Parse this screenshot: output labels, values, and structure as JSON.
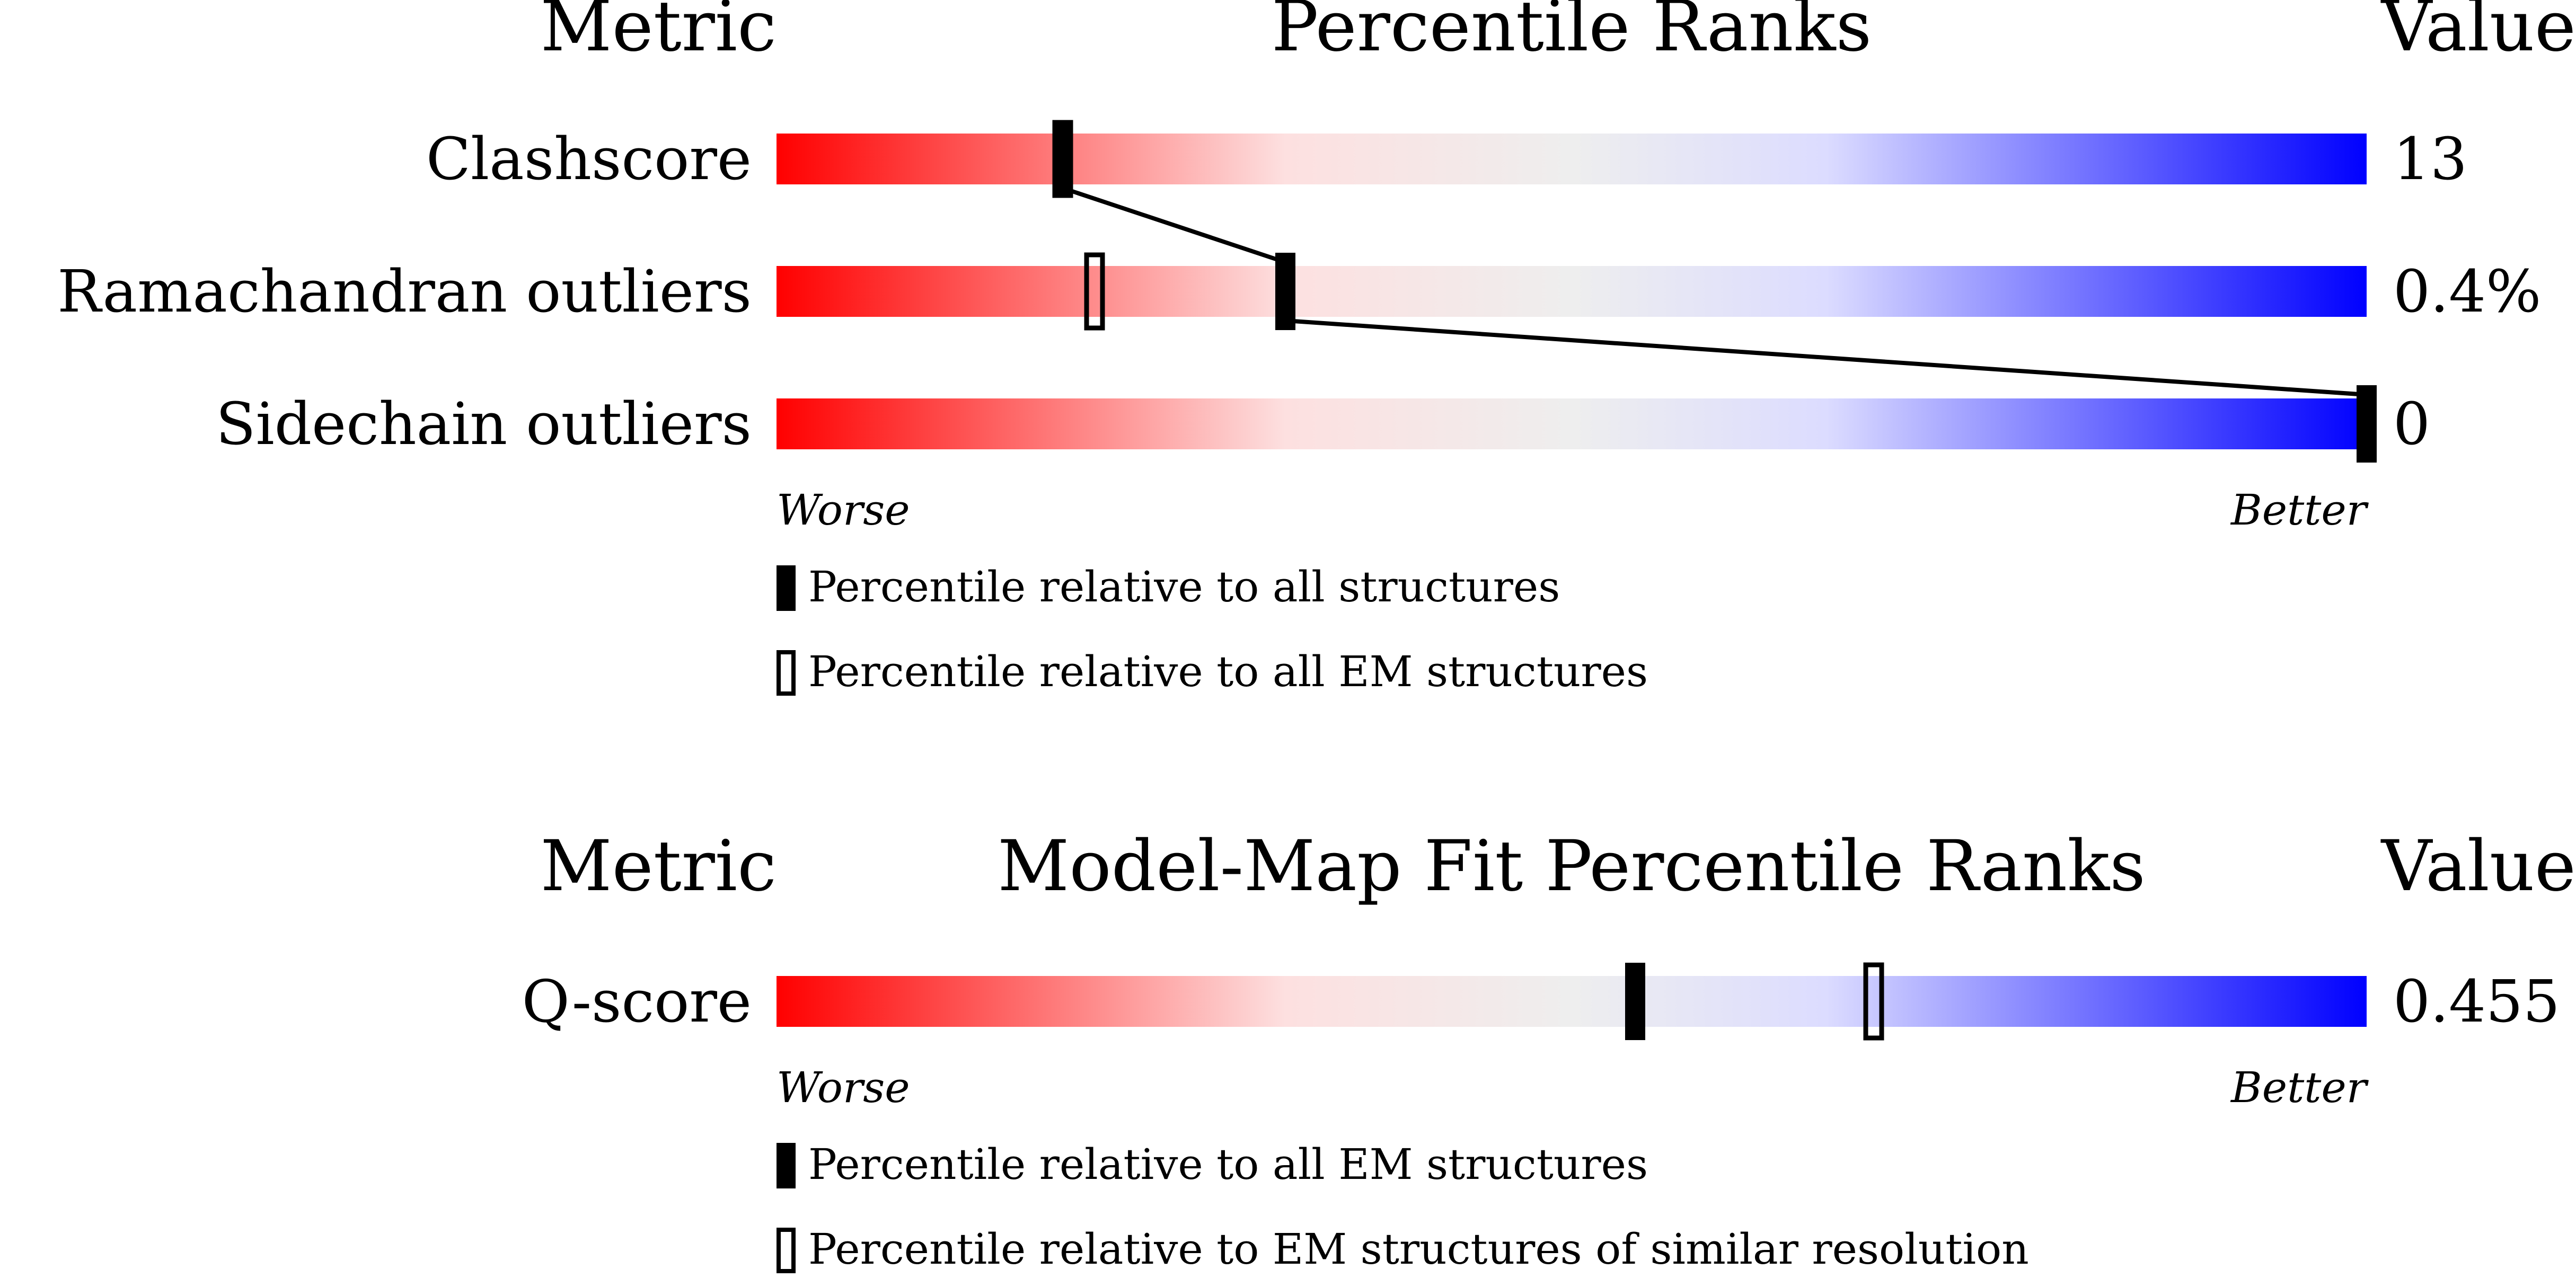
{
  "panels": [
    {
      "id": "geometry",
      "header": {
        "metric": "Metric",
        "title": "Percentile Ranks",
        "value": "Value"
      },
      "rows": [
        {
          "metric": "Clashscore",
          "value": "13"
        },
        {
          "metric": "Ramachandran outliers",
          "value": "0.4%"
        },
        {
          "metric": "Sidechain outliers",
          "value": "0"
        }
      ],
      "worse_label": "Worse",
      "better_label": "Better",
      "legend": [
        {
          "marker": "filled",
          "text": "Percentile relative to all structures"
        },
        {
          "marker": "open",
          "text": "Percentile relative to all EM structures"
        }
      ]
    },
    {
      "id": "model-map-fit",
      "header": {
        "metric": "Metric",
        "title": "Model-Map Fit Percentile Ranks",
        "value": "Value"
      },
      "rows": [
        {
          "metric": "Q-score",
          "value": "0.455"
        }
      ],
      "worse_label": "Worse",
      "better_label": "Better",
      "legend": [
        {
          "marker": "filled",
          "text": "Percentile relative to all EM structures"
        },
        {
          "marker": "open",
          "text": "Percentile relative to EM structures of similar resolution"
        }
      ]
    }
  ],
  "chart_data": [
    {
      "type": "bar",
      "title": "Percentile Ranks",
      "categories": [
        "Clashscore",
        "Ramachandran outliers",
        "Sidechain outliers"
      ],
      "values_display": [
        "13",
        "0.4%",
        "0"
      ],
      "series": [
        {
          "name": "Percentile relative to all structures",
          "marker": "filled",
          "percentiles": [
            18,
            32,
            100
          ]
        },
        {
          "name": "Percentile relative to all EM structures",
          "marker": "open",
          "percentiles": [
            18,
            20,
            null
          ]
        }
      ],
      "xlim": [
        0,
        100
      ],
      "connector_series": "Percentile relative to all structures"
    },
    {
      "type": "bar",
      "title": "Model-Map Fit Percentile Ranks",
      "categories": [
        "Q-score"
      ],
      "values_display": [
        "0.455"
      ],
      "series": [
        {
          "name": "Percentile relative to all EM structures",
          "marker": "filled",
          "percentiles": [
            54
          ]
        },
        {
          "name": "Percentile relative to EM structures of similar resolution",
          "marker": "open",
          "percentiles": [
            69
          ]
        }
      ],
      "xlim": [
        0,
        100
      ]
    }
  ],
  "colors": {
    "worse": "#ff0000",
    "neutral": "#eeeeee",
    "better": "#0000ff",
    "marker": "#000000"
  }
}
